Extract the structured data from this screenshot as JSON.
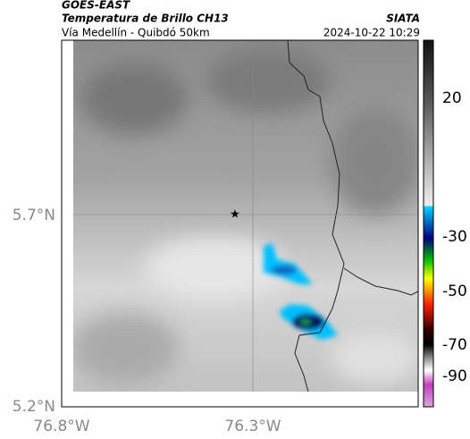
{
  "header": {
    "title": "GOES-EAST",
    "subtitle": "Temperatura de Brillo CH13",
    "route": "Vía Medellín - Quibdó 50km",
    "source": "SIATA",
    "datetime": "2024-10-22 10:29"
  },
  "map": {
    "lat_labels": [
      "5.7°N",
      "5.2°N"
    ],
    "lon_labels": [
      "76.8°W",
      "76.3°W"
    ]
  },
  "colorbar": {
    "labels": [
      "20",
      "-30",
      "-50",
      "-70",
      "-90"
    ]
  }
}
